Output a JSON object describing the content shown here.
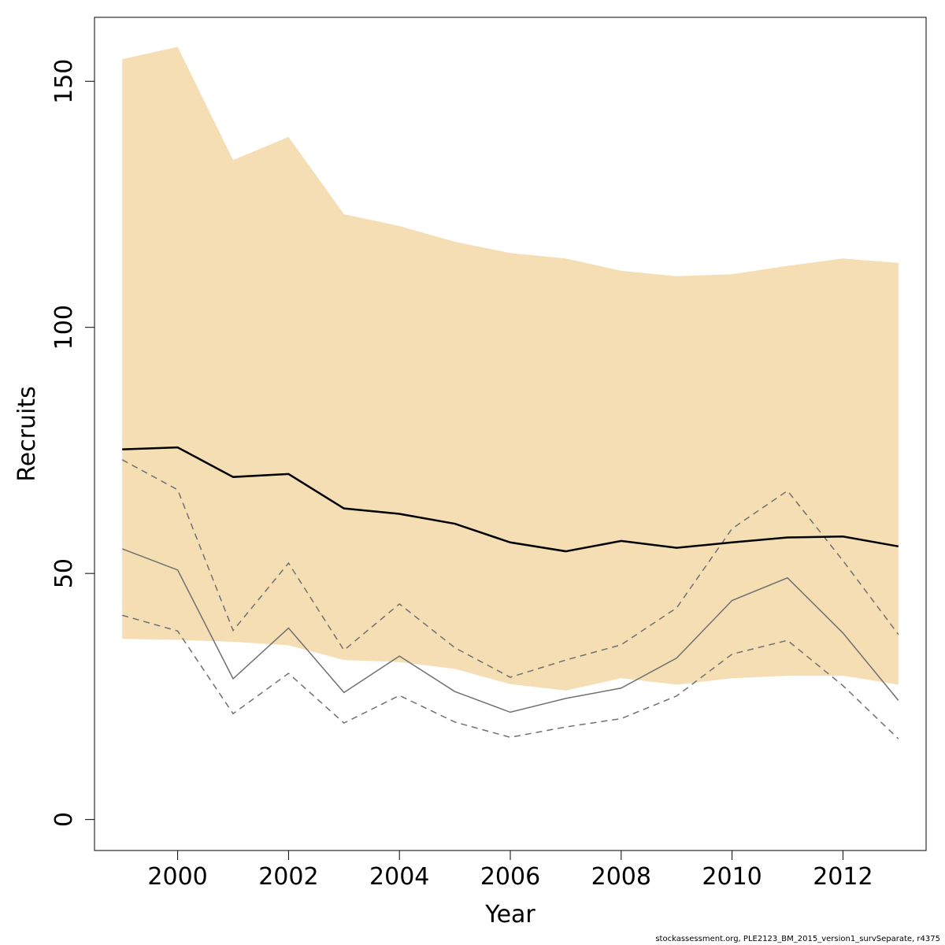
{
  "chart_data": {
    "type": "line",
    "xlabel": "Year",
    "ylabel": "Recruits",
    "xlim": [
      1998.5,
      2013.5
    ],
    "ylim": [
      -6.3,
      163
    ],
    "x_ticks": [
      2000,
      2002,
      2004,
      2006,
      2008,
      2010,
      2012
    ],
    "y_ticks": [
      0,
      50,
      100,
      150
    ],
    "x": [
      1999,
      2000,
      2001,
      2002,
      2003,
      2004,
      2005,
      2006,
      2007,
      2008,
      2009,
      2010,
      2011,
      2012,
      2013
    ],
    "band": {
      "upper": [
        154.5,
        157.0,
        134.0,
        138.7,
        123.0,
        120.6,
        117.4,
        115.1,
        114.0,
        111.5,
        110.4,
        110.8,
        112.5,
        114.0,
        113.1
      ],
      "lower": [
        36.7,
        36.5,
        36.1,
        35.4,
        32.4,
        32.0,
        30.6,
        27.5,
        26.2,
        28.7,
        27.4,
        28.7,
        29.2,
        29.2,
        27.4
      ],
      "color": "#f5deb3"
    },
    "series": [
      {
        "values": [
          75.2,
          75.6,
          69.6,
          70.2,
          63.2,
          62.1,
          60.1,
          56.3,
          54.5,
          56.6,
          55.2,
          56.3,
          57.3,
          57.5,
          55.5
        ],
        "color": "#000000",
        "style": "solid"
      },
      {
        "values": [
          55.0,
          50.7,
          28.6,
          38.9,
          25.8,
          33.2,
          26.0,
          21.8,
          24.6,
          26.7,
          32.8,
          44.5,
          49.1,
          37.9,
          24.2
        ],
        "color": "#707070",
        "style": "solid"
      },
      {
        "values": [
          73.1,
          67.0,
          38.4,
          52.1,
          34.4,
          43.8,
          34.9,
          28.9,
          32.4,
          35.5,
          43.0,
          59.1,
          66.8,
          52.6,
          37.6
        ],
        "color": "#707070",
        "style": "dashed"
      },
      {
        "values": [
          41.5,
          38.3,
          21.5,
          29.7,
          19.6,
          25.2,
          19.8,
          16.7,
          18.8,
          20.5,
          25.1,
          33.6,
          36.4,
          27.2,
          16.4
        ],
        "color": "#707070",
        "style": "dashed"
      }
    ]
  },
  "footnote": "stockassessment.org, PLE2123_BM_2015_version1_survSeparate, r4375"
}
